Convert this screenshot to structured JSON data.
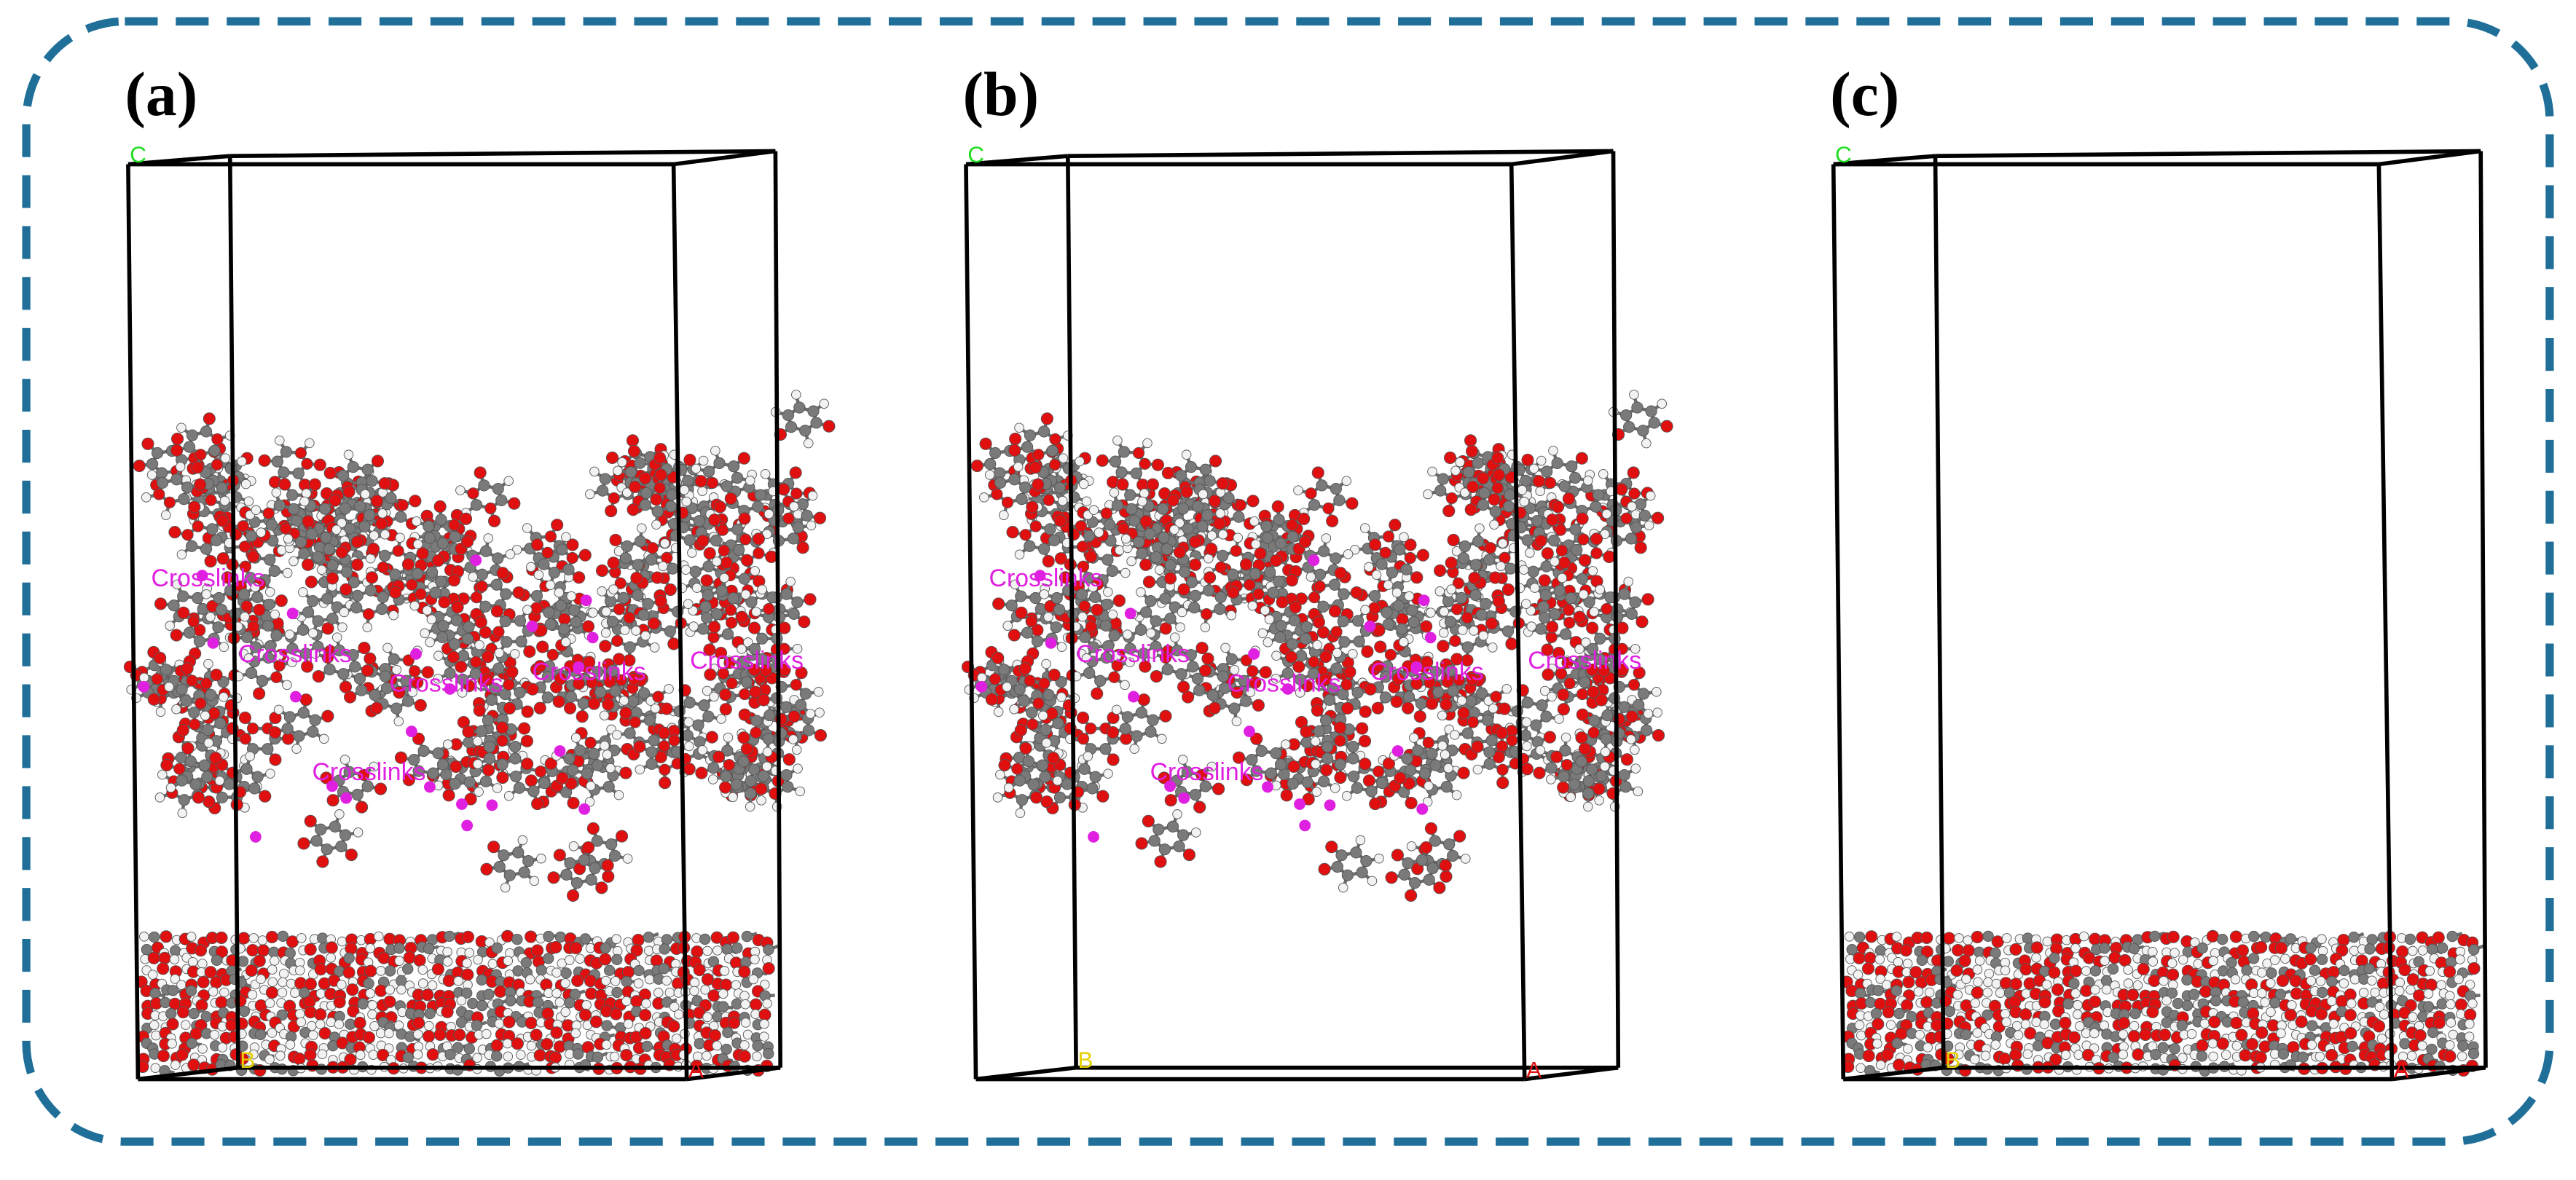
{
  "panels": [
    {
      "label": "(a)",
      "axes": {
        "c": "C",
        "a": "A",
        "b": "B"
      },
      "crosslinks": [
        "Crosslinks",
        "Crosslinks",
        "Crosslinks",
        "Crosslinks",
        "Crosslinks",
        "Crosslinks"
      ]
    },
    {
      "label": "(b)",
      "axes": {
        "c": "C",
        "a": "A",
        "b": "B"
      },
      "crosslinks": [
        "Crosslinks",
        "Crosslinks",
        "Crosslinks",
        "Crosslinks",
        "Crosslinks",
        "Crosslinks"
      ]
    },
    {
      "label": "(c)",
      "axes": {
        "c": "C",
        "a": "A",
        "b": "B"
      },
      "crosslinks": []
    }
  ]
}
